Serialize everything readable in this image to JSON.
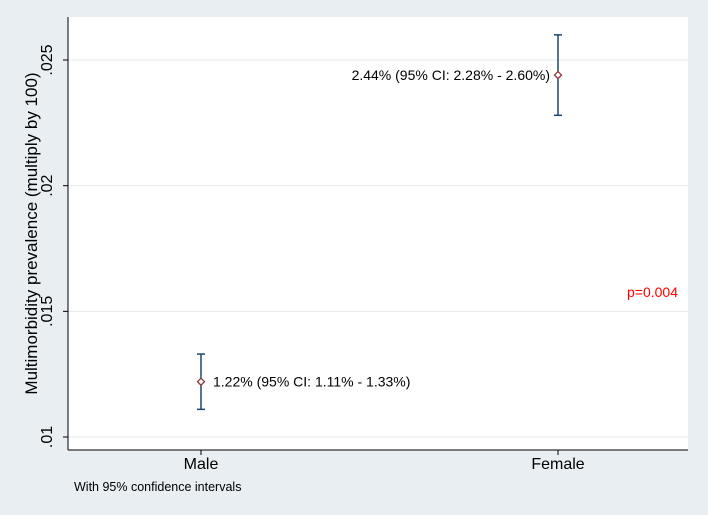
{
  "chart_data": {
    "type": "scatter",
    "title": "",
    "xlabel": "",
    "ylabel": "Multimorbidity prevalence (multiply by 100)",
    "ylim": [
      0.01,
      0.026
    ],
    "yticks": [
      0.01,
      0.015,
      0.02,
      0.025
    ],
    "ytick_labels": [
      ".01",
      ".015",
      ".02",
      ".025"
    ],
    "grid": true,
    "categories": [
      "Male",
      "Female"
    ],
    "points": [
      {
        "category": "Male",
        "value": 0.0122,
        "ci_low": 0.0111,
        "ci_high": 0.0133,
        "label": "1.22% (95% CI: 1.11% - 1.33%)"
      },
      {
        "category": "Female",
        "value": 0.0244,
        "ci_low": 0.0228,
        "ci_high": 0.026,
        "label": "2.44% (95% CI: 2.28% - 2.60%)"
      }
    ],
    "annotations": [
      {
        "text": "p=0.004",
        "color": "#ff0000"
      }
    ],
    "note": "With 95% confidence intervals",
    "colors": {
      "background": "#e8eef2",
      "plot_background": "#ffffff",
      "grid": "#e6ebee",
      "error_bar": "#1a476f",
      "marker": "#90353b",
      "annotation": "#ff0000",
      "text": "#000000"
    }
  }
}
